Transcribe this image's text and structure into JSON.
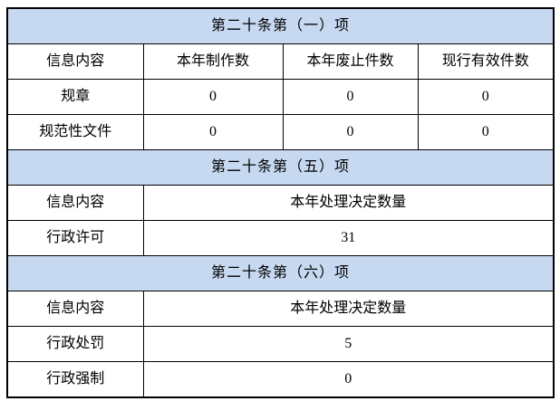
{
  "colors": {
    "section_header_bg": "#c6d9f0",
    "border": "#000000",
    "background": "#ffffff",
    "text": "#000000"
  },
  "table": {
    "sections": [
      {
        "title": "第二十条第（一）项",
        "columns": [
          "信息内容",
          "本年制作数",
          "本年废止件数",
          "现行有效件数"
        ],
        "rows": [
          {
            "label": "规章",
            "values": [
              "0",
              "0",
              "0"
            ]
          },
          {
            "label": "规范性文件",
            "values": [
              "0",
              "0",
              "0"
            ]
          }
        ]
      },
      {
        "title": "第二十条第（五）项",
        "columns": [
          "信息内容",
          "本年处理决定数量"
        ],
        "rows": [
          {
            "label": "行政许可",
            "values": [
              "31"
            ]
          }
        ]
      },
      {
        "title": "第二十条第（六）项",
        "columns": [
          "信息内容",
          "本年处理决定数量"
        ],
        "rows": [
          {
            "label": "行政处罚",
            "values": [
              "5"
            ]
          },
          {
            "label": "行政强制",
            "values": [
              "0"
            ]
          }
        ]
      }
    ]
  }
}
